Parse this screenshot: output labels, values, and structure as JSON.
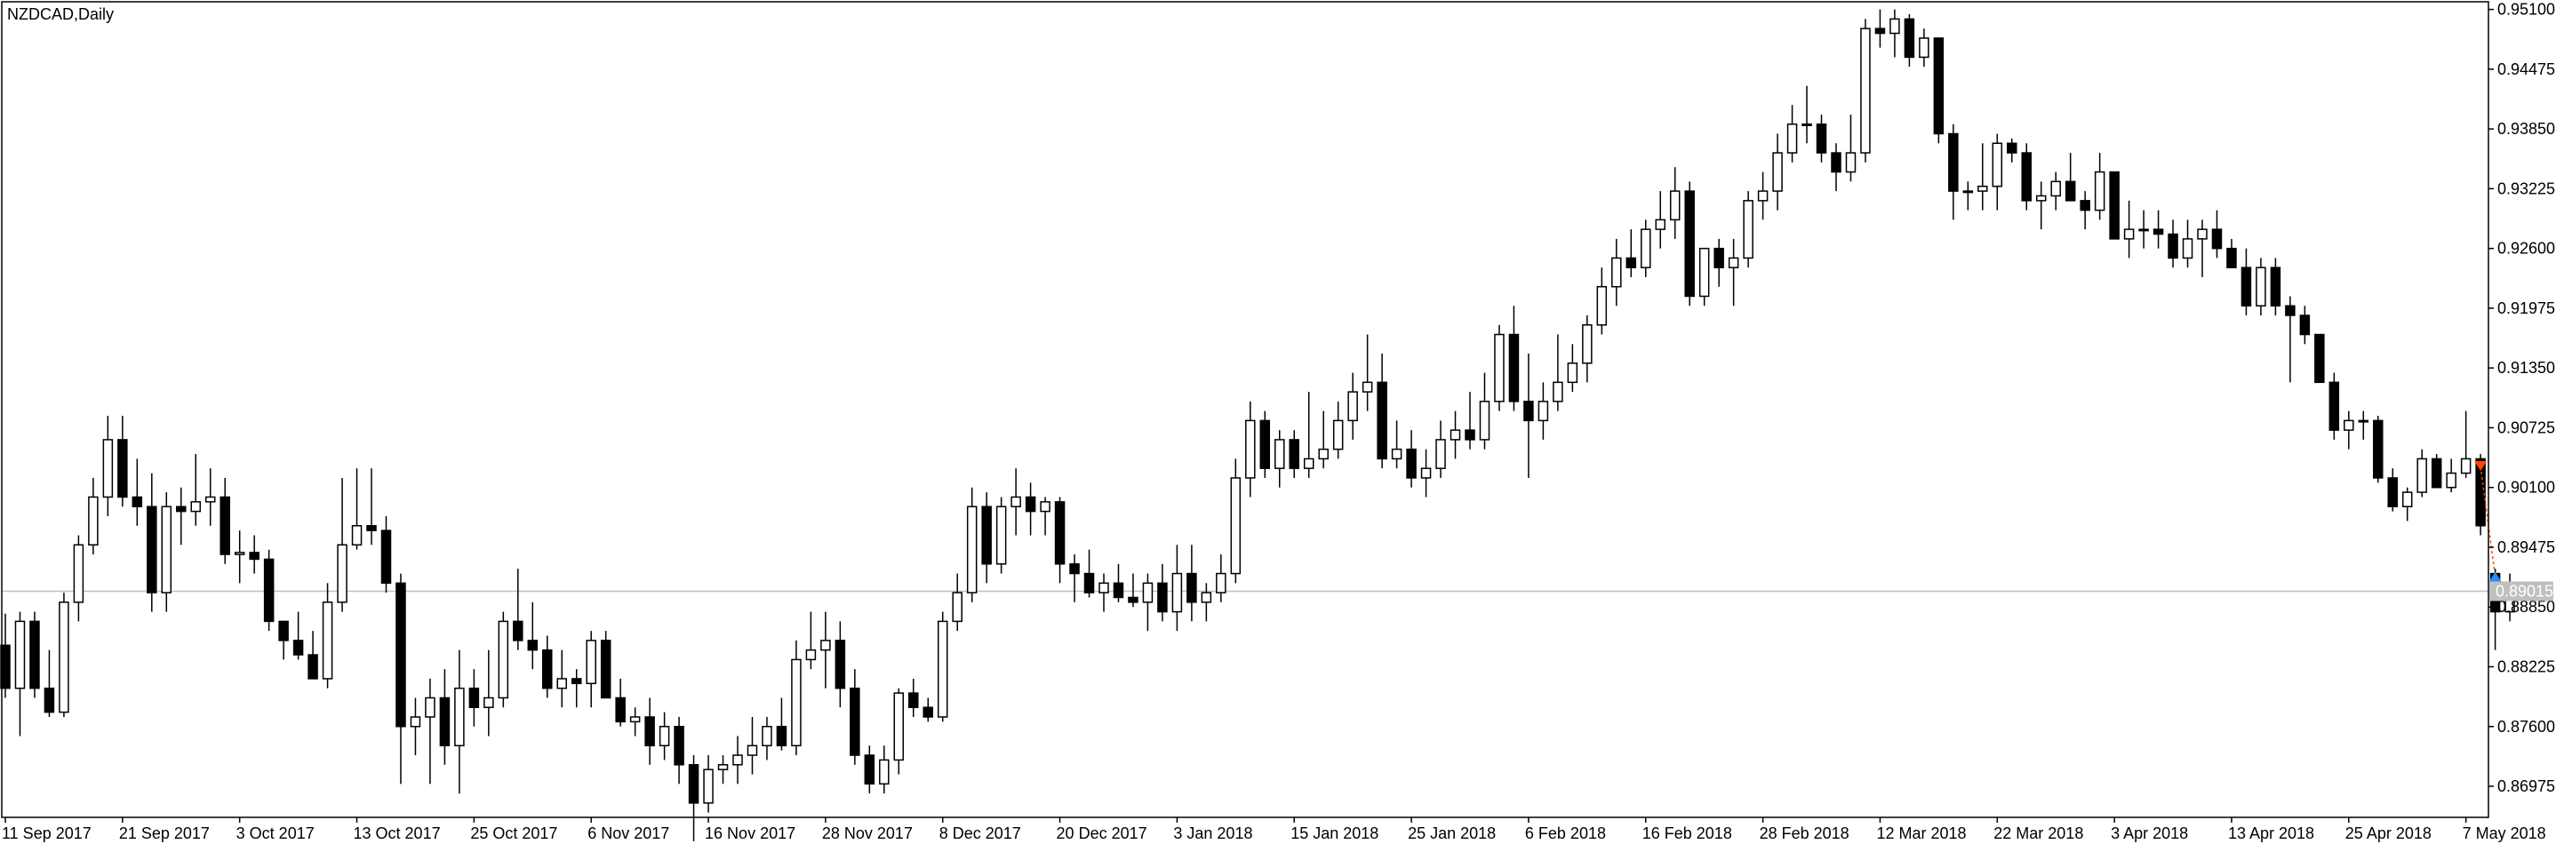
{
  "window": {
    "title": "NZDCAD,Daily"
  },
  "colors": {
    "background": "#ffffff",
    "frame": "#000000",
    "bull_fill": "#ffffff",
    "bear_fill": "#000000",
    "candle_outline": "#000000",
    "price_line": "#c0c0c0",
    "price_label_bg": "#c0c0c0",
    "price_label_text": "#ffffff",
    "sell_arrow": "#ff4500",
    "buy_arrow": "#1e90ff",
    "trade_line": "#ff4500"
  },
  "chart_data": {
    "type": "candlestick",
    "symbol": "NZDCAD",
    "timeframe": "Daily",
    "title": "NZDCAD,Daily",
    "ylim": [
      0.8665,
      0.9518
    ],
    "y_ticks": [
      "0.95100",
      "0.94475",
      "0.93850",
      "0.93225",
      "0.92600",
      "0.91975",
      "0.91350",
      "0.90725",
      "0.90100",
      "0.89475",
      "0.88850",
      "0.88225",
      "0.87600",
      "0.86975"
    ],
    "x_tick_labels": [
      "11 Sep 2017",
      "21 Sep 2017",
      "3 Oct 2017",
      "13 Oct 2017",
      "25 Oct 2017",
      "6 Nov 2017",
      "16 Nov 2017",
      "28 Nov 2017",
      "8 Dec 2017",
      "20 Dec 2017",
      "3 Jan 2018",
      "15 Jan 2018",
      "25 Jan 2018",
      "6 Feb 2018",
      "16 Feb 2018",
      "28 Feb 2018",
      "12 Mar 2018",
      "22 Mar 2018",
      "3 Apr 2018",
      "13 Apr 2018",
      "25 Apr 2018",
      "7 May 2018"
    ],
    "x_tick_index": [
      0,
      8,
      16,
      24,
      32,
      40,
      48,
      56,
      64,
      72,
      80,
      88,
      96,
      104,
      112,
      120,
      128,
      136,
      144,
      152,
      160,
      168
    ],
    "current_price": "0.89015",
    "grid": false,
    "trade_markers": [
      {
        "type": "sell",
        "bar": 169,
        "price": 0.9032
      },
      {
        "type": "buy",
        "bar": 170,
        "price": 0.8917
      }
    ],
    "ohlc": [
      [
        0.8845,
        0.8878,
        0.879,
        0.88
      ],
      [
        0.88,
        0.888,
        0.875,
        0.887
      ],
      [
        0.887,
        0.888,
        0.879,
        0.88
      ],
      [
        0.88,
        0.884,
        0.877,
        0.8775
      ],
      [
        0.8775,
        0.89,
        0.877,
        0.889
      ],
      [
        0.889,
        0.896,
        0.887,
        0.895
      ],
      [
        0.895,
        0.902,
        0.894,
        0.9
      ],
      [
        0.9,
        0.9085,
        0.898,
        0.906
      ],
      [
        0.906,
        0.9085,
        0.899,
        0.9
      ],
      [
        0.9,
        0.904,
        0.897,
        0.899
      ],
      [
        0.899,
        0.9025,
        0.888,
        0.89
      ],
      [
        0.89,
        0.9005,
        0.888,
        0.899
      ],
      [
        0.899,
        0.901,
        0.895,
        0.8985
      ],
      [
        0.8985,
        0.9045,
        0.897,
        0.8995
      ],
      [
        0.8995,
        0.903,
        0.897,
        0.9
      ],
      [
        0.9,
        0.902,
        0.893,
        0.894
      ],
      [
        0.894,
        0.8965,
        0.891,
        0.8942
      ],
      [
        0.8942,
        0.896,
        0.892,
        0.8935
      ],
      [
        0.8935,
        0.8945,
        0.886,
        0.887
      ],
      [
        0.887,
        0.887,
        0.883,
        0.885
      ],
      [
        0.885,
        0.888,
        0.883,
        0.8835
      ],
      [
        0.8835,
        0.886,
        0.881,
        0.881
      ],
      [
        0.881,
        0.891,
        0.88,
        0.889
      ],
      [
        0.889,
        0.902,
        0.888,
        0.895
      ],
      [
        0.895,
        0.903,
        0.8945,
        0.897
      ],
      [
        0.897,
        0.903,
        0.895,
        0.8965
      ],
      [
        0.8965,
        0.898,
        0.89,
        0.891
      ],
      [
        0.891,
        0.892,
        0.87,
        0.876
      ],
      [
        0.876,
        0.879,
        0.873,
        0.877
      ],
      [
        0.877,
        0.881,
        0.87,
        0.879
      ],
      [
        0.879,
        0.882,
        0.872,
        0.874
      ],
      [
        0.874,
        0.884,
        0.869,
        0.88
      ],
      [
        0.88,
        0.882,
        0.876,
        0.878
      ],
      [
        0.878,
        0.884,
        0.875,
        0.879
      ],
      [
        0.879,
        0.888,
        0.878,
        0.887
      ],
      [
        0.887,
        0.8925,
        0.884,
        0.885
      ],
      [
        0.885,
        0.889,
        0.882,
        0.884
      ],
      [
        0.884,
        0.8855,
        0.879,
        0.88
      ],
      [
        0.88,
        0.884,
        0.878,
        0.881
      ],
      [
        0.881,
        0.882,
        0.878,
        0.8805
      ],
      [
        0.8805,
        0.886,
        0.878,
        0.885
      ],
      [
        0.885,
        0.886,
        0.879,
        0.879
      ],
      [
        0.879,
        0.881,
        0.876,
        0.8765
      ],
      [
        0.8765,
        0.878,
        0.875,
        0.877
      ],
      [
        0.877,
        0.879,
        0.872,
        0.874
      ],
      [
        0.874,
        0.8775,
        0.8725,
        0.876
      ],
      [
        0.876,
        0.877,
        0.87,
        0.872
      ],
      [
        0.872,
        0.873,
        0.864,
        0.868
      ],
      [
        0.868,
        0.873,
        0.867,
        0.8715
      ],
      [
        0.8715,
        0.873,
        0.87,
        0.872
      ],
      [
        0.872,
        0.875,
        0.87,
        0.873
      ],
      [
        0.873,
        0.877,
        0.871,
        0.874
      ],
      [
        0.874,
        0.877,
        0.8725,
        0.876
      ],
      [
        0.876,
        0.879,
        0.8735,
        0.874
      ],
      [
        0.874,
        0.885,
        0.873,
        0.883
      ],
      [
        0.883,
        0.888,
        0.882,
        0.884
      ],
      [
        0.884,
        0.888,
        0.88,
        0.885
      ],
      [
        0.885,
        0.887,
        0.878,
        0.88
      ],
      [
        0.88,
        0.882,
        0.872,
        0.873
      ],
      [
        0.873,
        0.874,
        0.869,
        0.87
      ],
      [
        0.87,
        0.874,
        0.869,
        0.8725
      ],
      [
        0.8725,
        0.88,
        0.871,
        0.8795
      ],
      [
        0.8795,
        0.881,
        0.877,
        0.878
      ],
      [
        0.878,
        0.879,
        0.8765,
        0.877
      ],
      [
        0.877,
        0.888,
        0.8765,
        0.887
      ],
      [
        0.887,
        0.892,
        0.886,
        0.89
      ],
      [
        0.89,
        0.901,
        0.889,
        0.899
      ],
      [
        0.899,
        0.9005,
        0.891,
        0.893
      ],
      [
        0.893,
        0.9,
        0.892,
        0.899
      ],
      [
        0.899,
        0.903,
        0.896,
        0.9
      ],
      [
        0.9,
        0.9015,
        0.896,
        0.8985
      ],
      [
        0.8985,
        0.9,
        0.896,
        0.8995
      ],
      [
        0.8995,
        0.9,
        0.891,
        0.893
      ],
      [
        0.893,
        0.894,
        0.889,
        0.892
      ],
      [
        0.892,
        0.8945,
        0.8895,
        0.89
      ],
      [
        0.89,
        0.892,
        0.888,
        0.891
      ],
      [
        0.891,
        0.893,
        0.889,
        0.8895
      ],
      [
        0.8895,
        0.892,
        0.8885,
        0.889
      ],
      [
        0.889,
        0.892,
        0.886,
        0.891
      ],
      [
        0.891,
        0.893,
        0.887,
        0.888
      ],
      [
        0.888,
        0.895,
        0.886,
        0.892
      ],
      [
        0.892,
        0.895,
        0.887,
        0.889
      ],
      [
        0.889,
        0.891,
        0.887,
        0.89
      ],
      [
        0.89,
        0.894,
        0.889,
        0.892
      ],
      [
        0.892,
        0.904,
        0.891,
        0.902
      ],
      [
        0.902,
        0.91,
        0.9,
        0.908
      ],
      [
        0.908,
        0.909,
        0.902,
        0.903
      ],
      [
        0.903,
        0.907,
        0.901,
        0.906
      ],
      [
        0.906,
        0.907,
        0.902,
        0.903
      ],
      [
        0.903,
        0.911,
        0.902,
        0.904
      ],
      [
        0.904,
        0.909,
        0.903,
        0.905
      ],
      [
        0.905,
        0.91,
        0.904,
        0.908
      ],
      [
        0.908,
        0.913,
        0.906,
        0.911
      ],
      [
        0.911,
        0.917,
        0.909,
        0.912
      ],
      [
        0.912,
        0.915,
        0.903,
        0.904
      ],
      [
        0.904,
        0.908,
        0.903,
        0.905
      ],
      [
        0.905,
        0.907,
        0.901,
        0.902
      ],
      [
        0.902,
        0.905,
        0.9,
        0.903
      ],
      [
        0.903,
        0.908,
        0.902,
        0.906
      ],
      [
        0.906,
        0.909,
        0.904,
        0.907
      ],
      [
        0.907,
        0.911,
        0.905,
        0.906
      ],
      [
        0.906,
        0.913,
        0.905,
        0.91
      ],
      [
        0.91,
        0.918,
        0.909,
        0.917
      ],
      [
        0.917,
        0.92,
        0.909,
        0.91
      ],
      [
        0.91,
        0.915,
        0.902,
        0.908
      ],
      [
        0.908,
        0.912,
        0.906,
        0.91
      ],
      [
        0.91,
        0.917,
        0.909,
        0.912
      ],
      [
        0.912,
        0.916,
        0.911,
        0.914
      ],
      [
        0.914,
        0.919,
        0.912,
        0.918
      ],
      [
        0.918,
        0.924,
        0.917,
        0.922
      ],
      [
        0.922,
        0.927,
        0.92,
        0.925
      ],
      [
        0.925,
        0.928,
        0.923,
        0.924
      ],
      [
        0.924,
        0.929,
        0.923,
        0.928
      ],
      [
        0.928,
        0.932,
        0.926,
        0.929
      ],
      [
        0.929,
        0.9345,
        0.927,
        0.932
      ],
      [
        0.932,
        0.933,
        0.92,
        0.921
      ],
      [
        0.921,
        0.926,
        0.92,
        0.926
      ],
      [
        0.926,
        0.927,
        0.922,
        0.924
      ],
      [
        0.924,
        0.927,
        0.92,
        0.925
      ],
      [
        0.925,
        0.932,
        0.924,
        0.931
      ],
      [
        0.931,
        0.934,
        0.929,
        0.932
      ],
      [
        0.932,
        0.938,
        0.93,
        0.936
      ],
      [
        0.936,
        0.941,
        0.935,
        0.939
      ],
      [
        0.939,
        0.943,
        0.937,
        0.939
      ],
      [
        0.939,
        0.94,
        0.935,
        0.936
      ],
      [
        0.936,
        0.937,
        0.932,
        0.934
      ],
      [
        0.934,
        0.94,
        0.933,
        0.936
      ],
      [
        0.936,
        0.95,
        0.935,
        0.949
      ],
      [
        0.949,
        0.951,
        0.947,
        0.9485
      ],
      [
        0.9485,
        0.951,
        0.946,
        0.95
      ],
      [
        0.95,
        0.9505,
        0.945,
        0.946
      ],
      [
        0.946,
        0.949,
        0.945,
        0.948
      ],
      [
        0.948,
        0.948,
        0.937,
        0.938
      ],
      [
        0.938,
        0.939,
        0.929,
        0.932
      ],
      [
        0.932,
        0.933,
        0.93,
        0.932
      ],
      [
        0.932,
        0.937,
        0.93,
        0.9325
      ],
      [
        0.9325,
        0.938,
        0.93,
        0.937
      ],
      [
        0.937,
        0.9375,
        0.935,
        0.936
      ],
      [
        0.936,
        0.937,
        0.93,
        0.931
      ],
      [
        0.931,
        0.933,
        0.928,
        0.9315
      ],
      [
        0.9315,
        0.934,
        0.93,
        0.933
      ],
      [
        0.933,
        0.936,
        0.931,
        0.931
      ],
      [
        0.931,
        0.932,
        0.928,
        0.93
      ],
      [
        0.93,
        0.936,
        0.929,
        0.934
      ],
      [
        0.934,
        0.934,
        0.927,
        0.927
      ],
      [
        0.927,
        0.931,
        0.925,
        0.928
      ],
      [
        0.928,
        0.93,
        0.926,
        0.928
      ],
      [
        0.928,
        0.93,
        0.926,
        0.9275
      ],
      [
        0.9275,
        0.929,
        0.924,
        0.925
      ],
      [
        0.925,
        0.929,
        0.924,
        0.927
      ],
      [
        0.927,
        0.929,
        0.923,
        0.928
      ],
      [
        0.928,
        0.93,
        0.925,
        0.926
      ],
      [
        0.926,
        0.927,
        0.924,
        0.924
      ],
      [
        0.924,
        0.926,
        0.919,
        0.92
      ],
      [
        0.92,
        0.925,
        0.919,
        0.924
      ],
      [
        0.924,
        0.925,
        0.919,
        0.92
      ],
      [
        0.92,
        0.921,
        0.912,
        0.919
      ],
      [
        0.919,
        0.92,
        0.916,
        0.917
      ],
      [
        0.917,
        0.917,
        0.912,
        0.912
      ],
      [
        0.912,
        0.913,
        0.906,
        0.907
      ],
      [
        0.907,
        0.909,
        0.905,
        0.908
      ],
      [
        0.908,
        0.909,
        0.906,
        0.908
      ],
      [
        0.908,
        0.9085,
        0.9015,
        0.902
      ],
      [
        0.902,
        0.903,
        0.8985,
        0.899
      ],
      [
        0.899,
        0.901,
        0.8975,
        0.9005
      ],
      [
        0.9005,
        0.905,
        0.9,
        0.904
      ],
      [
        0.904,
        0.9045,
        0.901,
        0.901
      ],
      [
        0.901,
        0.904,
        0.9005,
        0.9025
      ],
      [
        0.9025,
        0.909,
        0.902,
        0.904
      ],
      [
        0.904,
        0.9045,
        0.896,
        0.897
      ],
      [
        0.892,
        0.8925,
        0.884,
        0.888
      ],
      [
        0.888,
        0.892,
        0.887,
        0.89
      ]
    ]
  }
}
